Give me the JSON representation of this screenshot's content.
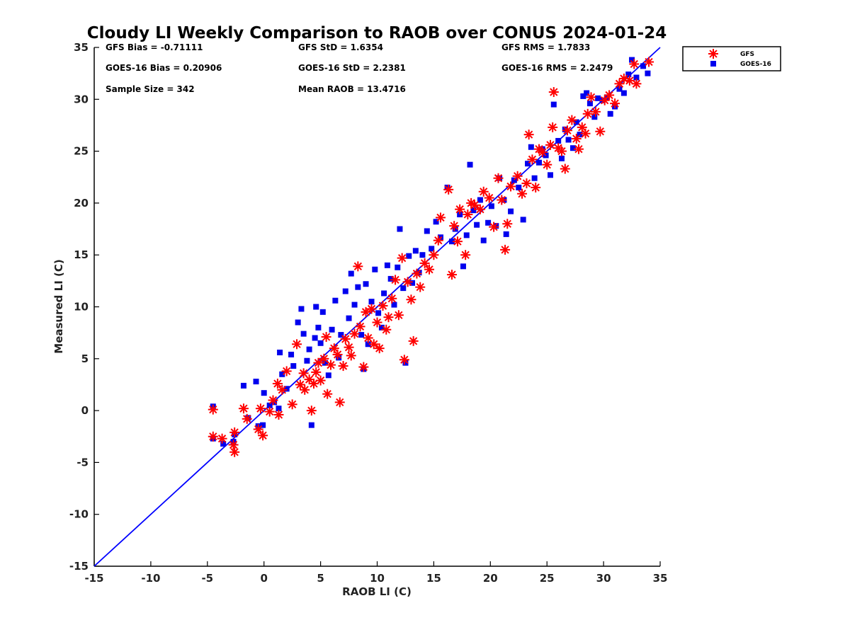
{
  "chart_data": {
    "type": "scatter",
    "title": "Cloudy LI Weekly Comparison to RAOB over CONUS 2024-01-24",
    "xlabel": "RAOB LI (C)",
    "ylabel": "Measured LI (C)",
    "xlim": [
      -15,
      35
    ],
    "ylim": [
      -15,
      35
    ],
    "xticks": [
      -15,
      -10,
      -5,
      0,
      5,
      10,
      15,
      20,
      25,
      30,
      35
    ],
    "yticks": [
      -15,
      -10,
      -5,
      0,
      5,
      10,
      15,
      20,
      25,
      30,
      35
    ],
    "grid": false,
    "legend_position": "outside-top-right",
    "reference_line": {
      "label": "1:1",
      "color": "#0000ff",
      "from": [
        -15,
        -15
      ],
      "to": [
        35,
        35
      ]
    },
    "stats": [
      {
        "text": "GFS Bias = -0.71111"
      },
      {
        "text": "GFS StD = 1.6354"
      },
      {
        "text": "GFS RMS = 1.7833"
      },
      {
        "text": "GOES-16 Bias = 0.20906"
      },
      {
        "text": "GOES-16 StD = 2.2381"
      },
      {
        "text": "GOES-16 RMS = 2.2479"
      },
      {
        "text": "Sample Size = 342"
      },
      {
        "text": "Mean RAOB = 13.4716"
      }
    ],
    "series": [
      {
        "name": "GFS",
        "marker": "asterisk",
        "color": "#ff0000",
        "points": [
          [
            -4.5,
            0.1
          ],
          [
            -4.5,
            -2.5
          ],
          [
            -3.7,
            -2.7
          ],
          [
            -2.6,
            -4.0
          ],
          [
            -2.6,
            -2.1
          ],
          [
            -2.7,
            -3.3
          ],
          [
            -1.8,
            0.2
          ],
          [
            -1.5,
            -0.8
          ],
          [
            -0.5,
            -1.8
          ],
          [
            -0.1,
            -2.4
          ],
          [
            -0.3,
            0.2
          ],
          [
            0.5,
            -0.1
          ],
          [
            0.8,
            1.0
          ],
          [
            1.3,
            -0.4
          ],
          [
            1.2,
            2.6
          ],
          [
            1.6,
            2.0
          ],
          [
            2.0,
            3.8
          ],
          [
            2.5,
            0.6
          ],
          [
            2.9,
            6.4
          ],
          [
            3.2,
            2.5
          ],
          [
            3.5,
            3.6
          ],
          [
            3.6,
            2.0
          ],
          [
            4.0,
            3.0
          ],
          [
            4.2,
            0.0
          ],
          [
            4.4,
            2.6
          ],
          [
            4.6,
            3.7
          ],
          [
            4.8,
            4.6
          ],
          [
            5.0,
            2.9
          ],
          [
            5.3,
            5.0
          ],
          [
            5.5,
            7.1
          ],
          [
            5.6,
            1.6
          ],
          [
            5.9,
            4.4
          ],
          [
            6.2,
            6.0
          ],
          [
            6.5,
            5.4
          ],
          [
            6.7,
            0.8
          ],
          [
            7.0,
            4.3
          ],
          [
            7.2,
            6.9
          ],
          [
            7.5,
            6.1
          ],
          [
            7.7,
            5.3
          ],
          [
            8.0,
            7.4
          ],
          [
            8.3,
            13.9
          ],
          [
            8.5,
            8.1
          ],
          [
            8.8,
            4.2
          ],
          [
            9.0,
            9.5
          ],
          [
            9.2,
            7.0
          ],
          [
            9.5,
            9.8
          ],
          [
            9.7,
            6.4
          ],
          [
            10.0,
            8.5
          ],
          [
            10.2,
            6.0
          ],
          [
            10.5,
            10.1
          ],
          [
            10.8,
            7.8
          ],
          [
            11.0,
            9.0
          ],
          [
            11.3,
            10.8
          ],
          [
            11.6,
            12.6
          ],
          [
            11.9,
            9.2
          ],
          [
            12.2,
            14.7
          ],
          [
            12.4,
            4.9
          ],
          [
            12.7,
            12.4
          ],
          [
            13.0,
            10.7
          ],
          [
            13.2,
            6.7
          ],
          [
            13.5,
            13.2
          ],
          [
            13.8,
            11.9
          ],
          [
            14.2,
            14.2
          ],
          [
            14.6,
            13.6
          ],
          [
            15.0,
            15.0
          ],
          [
            15.4,
            16.4
          ],
          [
            15.6,
            18.6
          ],
          [
            16.3,
            21.3
          ],
          [
            16.6,
            13.1
          ],
          [
            16.8,
            17.8
          ],
          [
            17.1,
            16.3
          ],
          [
            17.3,
            19.4
          ],
          [
            17.8,
            15.0
          ],
          [
            18.0,
            18.9
          ],
          [
            18.3,
            20.0
          ],
          [
            18.6,
            19.8
          ],
          [
            19.1,
            19.4
          ],
          [
            19.4,
            21.1
          ],
          [
            19.9,
            20.5
          ],
          [
            20.3,
            17.7
          ],
          [
            20.7,
            22.4
          ],
          [
            21.0,
            20.3
          ],
          [
            21.3,
            15.5
          ],
          [
            21.5,
            18.0
          ],
          [
            21.8,
            21.6
          ],
          [
            22.4,
            22.6
          ],
          [
            22.8,
            20.9
          ],
          [
            23.2,
            21.9
          ],
          [
            23.4,
            26.6
          ],
          [
            23.7,
            24.2
          ],
          [
            24.0,
            21.5
          ],
          [
            24.3,
            25.2
          ],
          [
            24.6,
            24.9
          ],
          [
            25.0,
            23.7
          ],
          [
            25.3,
            25.6
          ],
          [
            25.5,
            27.3
          ],
          [
            25.6,
            30.7
          ],
          [
            26.0,
            25.3
          ],
          [
            26.3,
            25.0
          ],
          [
            26.6,
            23.3
          ],
          [
            26.8,
            27.0
          ],
          [
            27.2,
            28.0
          ],
          [
            27.6,
            26.2
          ],
          [
            27.8,
            25.2
          ],
          [
            28.1,
            27.3
          ],
          [
            28.4,
            26.7
          ],
          [
            28.6,
            28.6
          ],
          [
            28.9,
            30.2
          ],
          [
            29.3,
            28.8
          ],
          [
            29.7,
            26.9
          ],
          [
            30.1,
            29.9
          ],
          [
            30.5,
            30.4
          ],
          [
            31.0,
            29.6
          ],
          [
            31.4,
            31.5
          ],
          [
            31.8,
            32.0
          ],
          [
            32.3,
            31.8
          ],
          [
            32.7,
            33.4
          ],
          [
            32.9,
            31.5
          ],
          [
            34.0,
            33.6
          ]
        ]
      },
      {
        "name": "GOES-16",
        "marker": "square",
        "color": "#0000ee",
        "points": [
          [
            -4.5,
            0.4
          ],
          [
            -4.5,
            -2.7
          ],
          [
            -3.6,
            -3.2
          ],
          [
            -2.7,
            -3.0
          ],
          [
            -2.6,
            -2.3
          ],
          [
            -1.8,
            2.4
          ],
          [
            -1.4,
            -0.7
          ],
          [
            -0.7,
            2.8
          ],
          [
            -0.5,
            -1.5
          ],
          [
            -0.1,
            -1.4
          ],
          [
            0.0,
            1.7
          ],
          [
            0.5,
            0.5
          ],
          [
            0.9,
            0.8
          ],
          [
            1.3,
            0.2
          ],
          [
            1.4,
            5.6
          ],
          [
            1.6,
            3.5
          ],
          [
            2.0,
            2.1
          ],
          [
            2.4,
            5.4
          ],
          [
            2.6,
            4.3
          ],
          [
            3.0,
            8.5
          ],
          [
            3.3,
            9.8
          ],
          [
            3.5,
            7.4
          ],
          [
            3.8,
            4.8
          ],
          [
            4.0,
            5.9
          ],
          [
            4.2,
            -1.4
          ],
          [
            4.5,
            7.0
          ],
          [
            4.6,
            10.0
          ],
          [
            4.8,
            8.0
          ],
          [
            5.0,
            6.5
          ],
          [
            5.2,
            9.5
          ],
          [
            5.4,
            4.6
          ],
          [
            5.7,
            3.4
          ],
          [
            6.0,
            7.8
          ],
          [
            6.3,
            10.6
          ],
          [
            6.6,
            5.1
          ],
          [
            6.8,
            7.3
          ],
          [
            7.2,
            11.5
          ],
          [
            7.5,
            8.9
          ],
          [
            7.7,
            13.2
          ],
          [
            8.0,
            10.2
          ],
          [
            8.3,
            11.9
          ],
          [
            8.6,
            7.3
          ],
          [
            8.8,
            4.0
          ],
          [
            9.0,
            12.2
          ],
          [
            9.2,
            6.4
          ],
          [
            9.5,
            10.5
          ],
          [
            9.8,
            13.6
          ],
          [
            10.1,
            9.4
          ],
          [
            10.4,
            8.0
          ],
          [
            10.6,
            11.3
          ],
          [
            10.9,
            14.0
          ],
          [
            11.2,
            12.7
          ],
          [
            11.5,
            10.2
          ],
          [
            11.8,
            13.8
          ],
          [
            12.0,
            17.5
          ],
          [
            12.3,
            11.8
          ],
          [
            12.5,
            4.6
          ],
          [
            12.8,
            14.9
          ],
          [
            13.1,
            12.3
          ],
          [
            13.4,
            15.4
          ],
          [
            13.7,
            13.3
          ],
          [
            14.0,
            15.0
          ],
          [
            14.4,
            17.3
          ],
          [
            14.8,
            15.6
          ],
          [
            15.2,
            18.2
          ],
          [
            15.6,
            16.7
          ],
          [
            16.2,
            21.5
          ],
          [
            16.6,
            16.3
          ],
          [
            16.9,
            17.5
          ],
          [
            17.3,
            18.9
          ],
          [
            17.6,
            13.9
          ],
          [
            17.9,
            16.9
          ],
          [
            18.2,
            23.7
          ],
          [
            18.5,
            19.3
          ],
          [
            18.8,
            17.9
          ],
          [
            19.1,
            20.3
          ],
          [
            19.4,
            16.4
          ],
          [
            19.8,
            18.1
          ],
          [
            20.1,
            19.7
          ],
          [
            20.5,
            17.8
          ],
          [
            20.8,
            22.4
          ],
          [
            21.2,
            20.3
          ],
          [
            21.4,
            17.0
          ],
          [
            21.8,
            19.2
          ],
          [
            22.1,
            22.2
          ],
          [
            22.5,
            21.5
          ],
          [
            22.9,
            18.4
          ],
          [
            23.3,
            23.8
          ],
          [
            23.6,
            25.4
          ],
          [
            23.9,
            22.4
          ],
          [
            24.3,
            23.9
          ],
          [
            24.6,
            25.2
          ],
          [
            24.9,
            24.6
          ],
          [
            25.3,
            22.7
          ],
          [
            25.6,
            29.5
          ],
          [
            26.0,
            26.0
          ],
          [
            26.3,
            24.3
          ],
          [
            26.6,
            27.1
          ],
          [
            26.9,
            26.1
          ],
          [
            27.3,
            25.3
          ],
          [
            27.6,
            27.8
          ],
          [
            27.9,
            26.6
          ],
          [
            28.2,
            30.3
          ],
          [
            28.5,
            30.6
          ],
          [
            28.8,
            29.6
          ],
          [
            29.2,
            28.3
          ],
          [
            29.5,
            30.1
          ],
          [
            29.9,
            29.9
          ],
          [
            30.3,
            30.2
          ],
          [
            30.6,
            28.6
          ],
          [
            31.0,
            29.3
          ],
          [
            31.4,
            31.0
          ],
          [
            31.8,
            30.6
          ],
          [
            32.2,
            32.4
          ],
          [
            32.5,
            33.8
          ],
          [
            32.9,
            32.1
          ],
          [
            33.5,
            33.2
          ],
          [
            33.9,
            32.5
          ]
        ]
      }
    ]
  }
}
